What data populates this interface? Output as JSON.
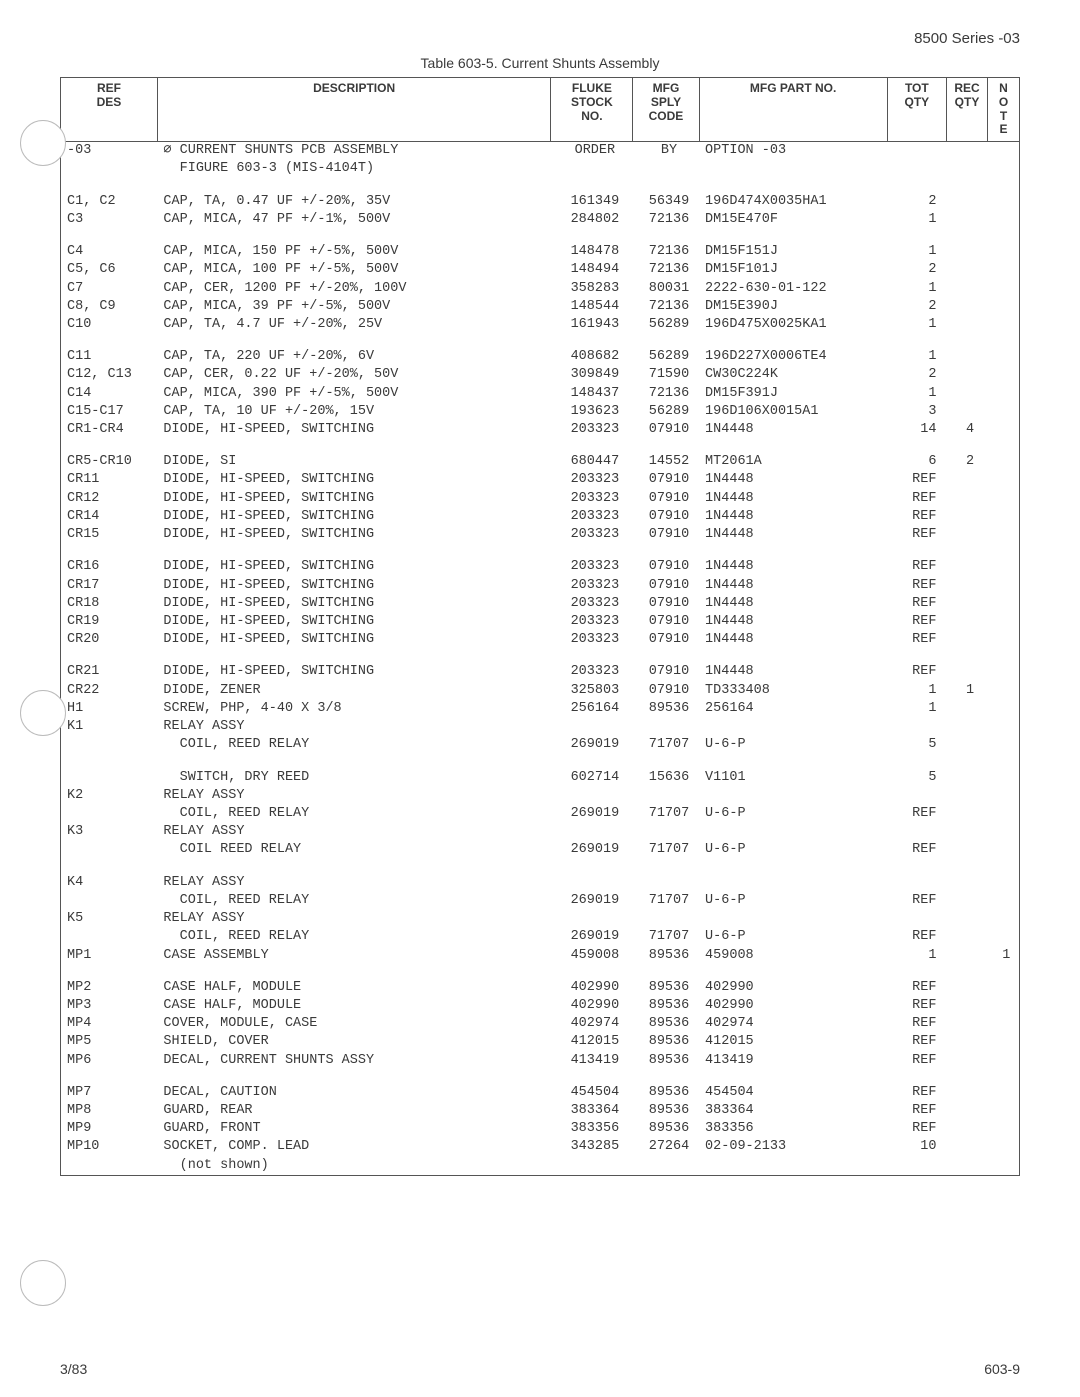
{
  "header_right": "8500 Series -03",
  "table_caption": "Table 603-5.  Current Shunts Assembly",
  "columns": {
    "ref": "REF\nDES",
    "desc": "DESCRIPTION",
    "stock": "FLUKE\nSTOCK\nNO.",
    "sply": "MFG\nSPLY\nCODE",
    "part": "MFG PART NO.",
    "tot": "TOT\nQTY",
    "rec": "REC\nQTY",
    "note": "N\nO\nT\nE"
  },
  "rows": [
    {
      "ref": "-03",
      "desc": "∅ CURRENT SHUNTS PCB ASSEMBLY\n  FIGURE 603-3 (MIS-4104T)",
      "stock": "ORDER",
      "sply": "BY",
      "part": "OPTION -03",
      "tot": "",
      "rec": "",
      "note": ""
    },
    {
      "spacer": true
    },
    {
      "ref": "C1, C2",
      "desc": "CAP, TA, 0.47 UF +/-20%, 35V",
      "stock": "161349",
      "sply": "56349",
      "part": "196D474X0035HA1",
      "tot": "2",
      "rec": "",
      "note": ""
    },
    {
      "ref": "C3",
      "desc": "CAP, MICA, 47 PF +/-1%, 500V",
      "stock": "284802",
      "sply": "72136",
      "part": "DM15E470F",
      "tot": "1",
      "rec": "",
      "note": ""
    },
    {
      "spacer": true
    },
    {
      "ref": "C4",
      "desc": "CAP, MICA, 150 PF +/-5%, 500V",
      "stock": "148478",
      "sply": "72136",
      "part": "DM15F151J",
      "tot": "1",
      "rec": "",
      "note": ""
    },
    {
      "ref": "C5, C6",
      "desc": "CAP, MICA, 100 PF +/-5%, 500V",
      "stock": "148494",
      "sply": "72136",
      "part": "DM15F101J",
      "tot": "2",
      "rec": "",
      "note": ""
    },
    {
      "ref": "C7",
      "desc": "CAP, CER, 1200 PF +/-20%, 100V",
      "stock": "358283",
      "sply": "80031",
      "part": "2222-630-01-122",
      "tot": "1",
      "rec": "",
      "note": ""
    },
    {
      "ref": "C8, C9",
      "desc": "CAP, MICA, 39 PF +/-5%, 500V",
      "stock": "148544",
      "sply": "72136",
      "part": "DM15E390J",
      "tot": "2",
      "rec": "",
      "note": ""
    },
    {
      "ref": "C10",
      "desc": "CAP, TA, 4.7 UF +/-20%, 25V",
      "stock": "161943",
      "sply": "56289",
      "part": "196D475X0025KA1",
      "tot": "1",
      "rec": "",
      "note": ""
    },
    {
      "spacer": true
    },
    {
      "ref": "C11",
      "desc": "CAP, TA, 220 UF +/-20%, 6V",
      "stock": "408682",
      "sply": "56289",
      "part": "196D227X0006TE4",
      "tot": "1",
      "rec": "",
      "note": ""
    },
    {
      "ref": "C12, C13",
      "desc": "CAP, CER, 0.22 UF +/-20%, 50V",
      "stock": "309849",
      "sply": "71590",
      "part": "CW30C224K",
      "tot": "2",
      "rec": "",
      "note": ""
    },
    {
      "ref": "C14",
      "desc": "CAP, MICA, 390 PF +/-5%, 500V",
      "stock": "148437",
      "sply": "72136",
      "part": "DM15F391J",
      "tot": "1",
      "rec": "",
      "note": ""
    },
    {
      "ref": "C15-C17",
      "desc": "CAP, TA, 10 UF +/-20%, 15V",
      "stock": "193623",
      "sply": "56289",
      "part": "196D106X0015A1",
      "tot": "3",
      "rec": "",
      "note": ""
    },
    {
      "ref": "CR1-CR4",
      "desc": "DIODE, HI-SPEED, SWITCHING",
      "stock": "203323",
      "sply": "07910",
      "part": "1N4448",
      "tot": "14",
      "rec": "4",
      "note": ""
    },
    {
      "spacer": true
    },
    {
      "ref": "CR5-CR10",
      "desc": "DIODE, SI",
      "stock": "680447",
      "sply": "14552",
      "part": "MT2061A",
      "tot": "6",
      "rec": "2",
      "note": ""
    },
    {
      "ref": "CR11",
      "desc": "DIODE, HI-SPEED, SWITCHING",
      "stock": "203323",
      "sply": "07910",
      "part": "1N4448",
      "tot": "REF",
      "rec": "",
      "note": ""
    },
    {
      "ref": "CR12",
      "desc": "DIODE, HI-SPEED, SWITCHING",
      "stock": "203323",
      "sply": "07910",
      "part": "1N4448",
      "tot": "REF",
      "rec": "",
      "note": ""
    },
    {
      "ref": "CR14",
      "desc": "DIODE, HI-SPEED, SWITCHING",
      "stock": "203323",
      "sply": "07910",
      "part": "1N4448",
      "tot": "REF",
      "rec": "",
      "note": ""
    },
    {
      "ref": "CR15",
      "desc": "DIODE, HI-SPEED, SWITCHING",
      "stock": "203323",
      "sply": "07910",
      "part": "1N4448",
      "tot": "REF",
      "rec": "",
      "note": ""
    },
    {
      "spacer": true
    },
    {
      "ref": "CR16",
      "desc": "DIODE, HI-SPEED, SWITCHING",
      "stock": "203323",
      "sply": "07910",
      "part": "1N4448",
      "tot": "REF",
      "rec": "",
      "note": ""
    },
    {
      "ref": "CR17",
      "desc": "DIODE, HI-SPEED, SWITCHING",
      "stock": "203323",
      "sply": "07910",
      "part": "1N4448",
      "tot": "REF",
      "rec": "",
      "note": ""
    },
    {
      "ref": "CR18",
      "desc": "DIODE, HI-SPEED, SWITCHING",
      "stock": "203323",
      "sply": "07910",
      "part": "1N4448",
      "tot": "REF",
      "rec": "",
      "note": ""
    },
    {
      "ref": "CR19",
      "desc": "DIODE, HI-SPEED, SWITCHING",
      "stock": "203323",
      "sply": "07910",
      "part": "1N4448",
      "tot": "REF",
      "rec": "",
      "note": ""
    },
    {
      "ref": "CR20",
      "desc": "DIODE, HI-SPEED, SWITCHING",
      "stock": "203323",
      "sply": "07910",
      "part": "1N4448",
      "tot": "REF",
      "rec": "",
      "note": ""
    },
    {
      "spacer": true
    },
    {
      "ref": "CR21",
      "desc": "DIODE, HI-SPEED, SWITCHING",
      "stock": "203323",
      "sply": "07910",
      "part": "1N4448",
      "tot": "REF",
      "rec": "",
      "note": ""
    },
    {
      "ref": "CR22",
      "desc": "DIODE, ZENER",
      "stock": "325803",
      "sply": "07910",
      "part": "TD333408",
      "tot": "1",
      "rec": "1",
      "note": ""
    },
    {
      "ref": "H1",
      "desc": "SCREW, PHP, 4-40 X 3/8",
      "stock": "256164",
      "sply": "89536",
      "part": "256164",
      "tot": "1",
      "rec": "",
      "note": ""
    },
    {
      "ref": "K1",
      "desc": "RELAY ASSY\n  COIL, REED RELAY",
      "stock": "\n269019",
      "sply": "\n71707",
      "part": "\nU-6-P",
      "tot": "\n5",
      "rec": "",
      "note": ""
    },
    {
      "spacer": true
    },
    {
      "ref": "",
      "desc": "  SWITCH, DRY REED",
      "stock": "602714",
      "sply": "15636",
      "part": "V1101",
      "tot": "5",
      "rec": "",
      "note": ""
    },
    {
      "ref": "K2",
      "desc": "RELAY ASSY\n  COIL, REED RELAY",
      "stock": "\n269019",
      "sply": "\n71707",
      "part": "\nU-6-P",
      "tot": "\nREF",
      "rec": "",
      "note": ""
    },
    {
      "ref": "K3",
      "desc": "RELAY ASSY\n  COIL REED RELAY",
      "stock": "\n269019",
      "sply": "\n71707",
      "part": "\nU-6-P",
      "tot": "\nREF",
      "rec": "",
      "note": ""
    },
    {
      "spacer": true
    },
    {
      "ref": "K4",
      "desc": "RELAY ASSY\n  COIL, REED RELAY",
      "stock": "\n269019",
      "sply": "\n71707",
      "part": "\nU-6-P",
      "tot": "\nREF",
      "rec": "",
      "note": ""
    },
    {
      "ref": "K5",
      "desc": "RELAY ASSY\n  COIL, REED RELAY",
      "stock": "\n269019",
      "sply": "\n71707",
      "part": "\nU-6-P",
      "tot": "\nREF",
      "rec": "",
      "note": ""
    },
    {
      "ref": "MP1",
      "desc": "CASE ASSEMBLY",
      "stock": "459008",
      "sply": "89536",
      "part": "459008",
      "tot": "1",
      "rec": "",
      "note": "1"
    },
    {
      "spacer": true
    },
    {
      "ref": "MP2",
      "desc": "CASE HALF, MODULE",
      "stock": "402990",
      "sply": "89536",
      "part": "402990",
      "tot": "REF",
      "rec": "",
      "note": ""
    },
    {
      "ref": "MP3",
      "desc": "CASE HALF, MODULE",
      "stock": "402990",
      "sply": "89536",
      "part": "402990",
      "tot": "REF",
      "rec": "",
      "note": ""
    },
    {
      "ref": "MP4",
      "desc": "COVER, MODULE, CASE",
      "stock": "402974",
      "sply": "89536",
      "part": "402974",
      "tot": "REF",
      "rec": "",
      "note": ""
    },
    {
      "ref": "MP5",
      "desc": "SHIELD, COVER",
      "stock": "412015",
      "sply": "89536",
      "part": "412015",
      "tot": "REF",
      "rec": "",
      "note": ""
    },
    {
      "ref": "MP6",
      "desc": "DECAL, CURRENT SHUNTS ASSY",
      "stock": "413419",
      "sply": "89536",
      "part": "413419",
      "tot": "REF",
      "rec": "",
      "note": ""
    },
    {
      "spacer": true
    },
    {
      "ref": "MP7",
      "desc": "DECAL, CAUTION",
      "stock": "454504",
      "sply": "89536",
      "part": "454504",
      "tot": "REF",
      "rec": "",
      "note": ""
    },
    {
      "ref": "MP8",
      "desc": "GUARD, REAR",
      "stock": "383364",
      "sply": "89536",
      "part": "383364",
      "tot": "REF",
      "rec": "",
      "note": ""
    },
    {
      "ref": "MP9",
      "desc": "GUARD, FRONT",
      "stock": "383356",
      "sply": "89536",
      "part": "383356",
      "tot": "REF",
      "rec": "",
      "note": ""
    },
    {
      "ref": "MP10",
      "desc": "SOCKET, COMP. LEAD\n  (not shown)",
      "stock": "343285",
      "sply": "27264",
      "part": "02-09-2133",
      "tot": "10",
      "rec": "",
      "note": ""
    }
  ],
  "footer_left": "3/83",
  "footer_right": "603-9"
}
